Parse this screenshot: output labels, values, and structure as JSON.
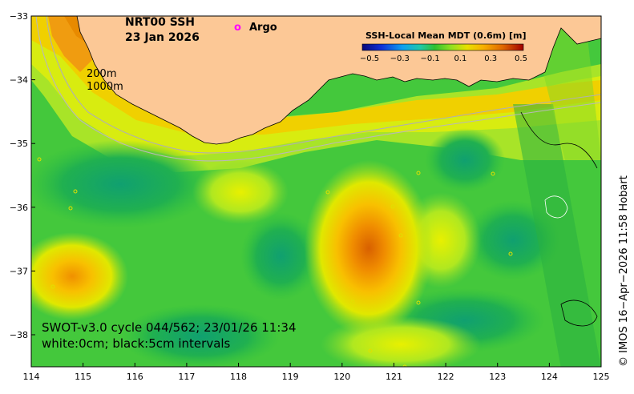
{
  "title": {
    "line1": "NRT00 SSH",
    "line2": "23 Jan 2026"
  },
  "legend": {
    "marker_symbol": "o",
    "marker_label": "Argo",
    "marker_color": "#ff00ff"
  },
  "contour_labels": {
    "shallow": "200m",
    "deep": "1000m"
  },
  "colorbar": {
    "title": "SSH-Local Mean MDT (0.6m) [m]",
    "ticks": [
      "−0.5",
      "−0.3",
      "−0.1",
      "0.1",
      "0.3",
      "0.5"
    ],
    "colors": [
      "#0a0a8c",
      "#1040e0",
      "#10a0f0",
      "#20c8a0",
      "#30c030",
      "#60d020",
      "#a8e820",
      "#e8e000",
      "#f8b000",
      "#e88000",
      "#d04000",
      "#a00000"
    ]
  },
  "footer": {
    "line1": "SWOT-v3.0 cycle 044/562; 23/01/26 11:34",
    "line2": "white:0cm; black:5cm intervals"
  },
  "credit": "© IMOS 16−Apr−2026 11:58 Hobart",
  "axes": {
    "x_ticks": [
      "114",
      "115",
      "116",
      "117",
      "118",
      "119",
      "120",
      "121",
      "122",
      "123",
      "124",
      "125"
    ],
    "y_ticks": [
      "−33",
      "−34",
      "−35",
      "−36",
      "−37",
      "−38"
    ]
  },
  "colors": {
    "land": "#fcc896",
    "ocean_base": "#44c83c",
    "eddy_warm": "#e89000",
    "eddy_mid": "#f8c800",
    "eddy_light": "#c8ec20",
    "cool": "#20b050"
  }
}
